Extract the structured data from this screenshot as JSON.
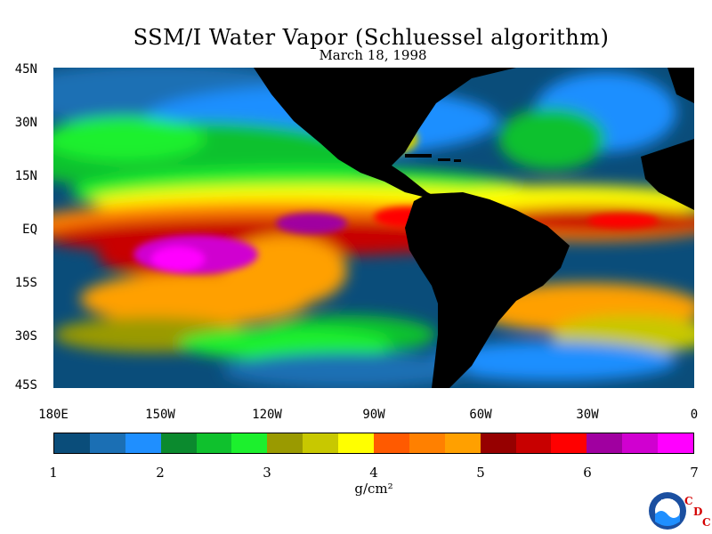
{
  "title": "SSM/I Water Vapor (Schluessel algorithm)",
  "subtitle": "March 18, 1998",
  "lat_labels": [
    "45N",
    "30N",
    "15N",
    "EQ",
    "15S",
    "30S",
    "45S"
  ],
  "lon_labels": [
    "180E",
    "150W",
    "120W",
    "90W",
    "60W",
    "30W",
    "0"
  ],
  "colorbar": {
    "min": 1,
    "max": 7,
    "tick_labels": [
      "1",
      "2",
      "3",
      "4",
      "5",
      "6",
      "7"
    ],
    "colors": [
      "#0a4d7a",
      "#1b6fb4",
      "#1f8fff",
      "#0b8a2e",
      "#0fc12d",
      "#1cf02d",
      "#9a9a00",
      "#c8c800",
      "#ffff00",
      "#ff5a00",
      "#ff8000",
      "#ffa000",
      "#960000",
      "#c80000",
      "#ff0000",
      "#a000a0",
      "#d000d0",
      "#ff00ff"
    ],
    "unit_label": "g/cm²"
  },
  "logo": {
    "name": "NOAA",
    "letters": [
      "C",
      "D",
      "C"
    ]
  }
}
